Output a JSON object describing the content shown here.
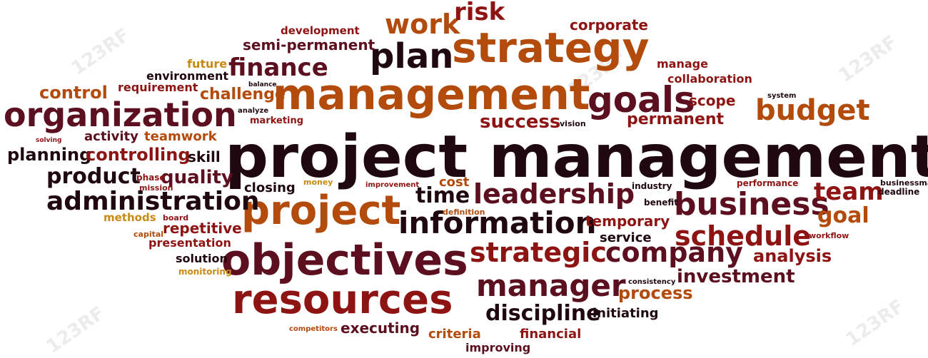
{
  "watermark": "123RF",
  "words": {
    "project_management": "project management",
    "management": "management",
    "strategy": "strategy",
    "organization": "organization",
    "objectives": "objectives",
    "resources": "resources",
    "project": "project",
    "information": "information",
    "business": "business",
    "leadership": "leadership",
    "administration": "administration",
    "goals": "goals",
    "plan": "plan",
    "schedule": "schedule",
    "strategic": "strategic",
    "company": "company",
    "manager": "manager",
    "budget": "budget",
    "work": "work",
    "risk": "risk",
    "finance": "finance",
    "team": "team",
    "goal": "goal",
    "time": "time",
    "discipline": "discipline",
    "investment": "investment",
    "analysis": "analysis",
    "process": "process",
    "product": "product",
    "quality": "quality",
    "planning": "planning",
    "controlling": "controlling",
    "control": "control",
    "challenge": "challenge",
    "success": "success",
    "permanent": "permanent",
    "scope": "scope",
    "corporate": "corporate",
    "semi_permanent": "semi-permanent",
    "development": "development",
    "requirement": "requirement",
    "environment": "environment",
    "future": "future",
    "manage": "manage",
    "collaboration": "collaboration",
    "teamwork": "teamwork",
    "activity": "activity",
    "skill": "skill",
    "closing": "closing",
    "cost": "cost",
    "temporary": "temporary",
    "service": "service",
    "repetitive": "repetitive",
    "methods": "methods",
    "presentation": "presentation",
    "solution": "solution",
    "monitoring": "monitoring",
    "executing": "executing",
    "criteria": "criteria",
    "financial": "financial",
    "improving": "improving",
    "initiating": "initiating",
    "competitors": "competitors",
    "marketing": "marketing",
    "vision": "vision",
    "benefit": "benefit",
    "industry": "industry",
    "performance": "performance",
    "businessman": "businessman",
    "deadline": "deadline",
    "workflow": "workflow",
    "consistency": "consistency",
    "definition": "definition",
    "improvement": "improvement",
    "mission": "mission",
    "phase": "phase",
    "capital": "capital",
    "board": "board",
    "money": "money",
    "system": "system",
    "analyze": "analyze",
    "balance": "balance",
    "solving": "solving"
  }
}
